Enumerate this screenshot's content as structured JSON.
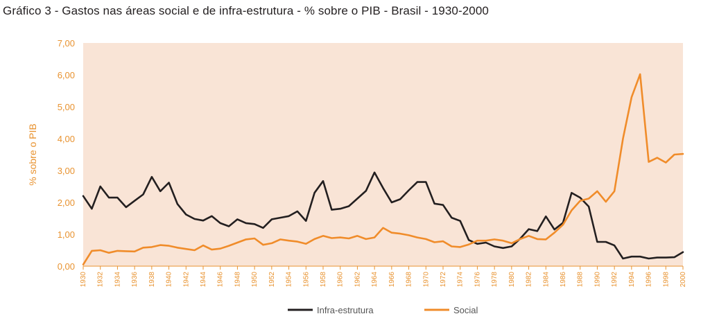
{
  "title": "Gráfico 3 - Gastos nas áreas social e de infra-estrutura - % sobre o PIB - Brasil - 1930-2000",
  "chart_data": {
    "type": "line",
    "title": "Gráfico 3 - Gastos nas áreas social e de infra-estrutura - % sobre o PIB - Brasil - 1930-2000",
    "xlabel": "",
    "ylabel": "% sobre o PIB",
    "ylim": [
      0,
      7
    ],
    "xlim": [
      1930,
      2000
    ],
    "y_ticks": [
      "0,00",
      "1,00",
      "2,00",
      "3,00",
      "4,00",
      "5,00",
      "6,00",
      "7,00"
    ],
    "x_ticks": [
      "1930",
      "1932",
      "1934",
      "1936",
      "1938",
      "1940",
      "1942",
      "1944",
      "1946",
      "1948",
      "1950",
      "1952",
      "1954",
      "1956",
      "1958",
      "1960",
      "1962",
      "1964",
      "1966",
      "1968",
      "1970",
      "1972",
      "1974",
      "1976",
      "1978",
      "1980",
      "1982",
      "1984",
      "1986",
      "1988",
      "1990",
      "1992",
      "1994",
      "1996",
      "1998",
      "2000"
    ],
    "grid": false,
    "legend": "bottom",
    "colors": {
      "plot_background": "#f9e4d6",
      "axis": "#e8922f"
    },
    "series": [
      {
        "name": "Infra-estrutura",
        "color": "#231f20",
        "x": [
          1930,
          1931,
          1932,
          1933,
          1934,
          1935,
          1936,
          1937,
          1938,
          1939,
          1940,
          1941,
          1942,
          1943,
          1944,
          1945,
          1946,
          1947,
          1948,
          1949,
          1950,
          1951,
          1952,
          1953,
          1954,
          1955,
          1956,
          1957,
          1958,
          1959,
          1960,
          1961,
          1962,
          1963,
          1964,
          1965,
          1966,
          1967,
          1968,
          1969,
          1970,
          1971,
          1972,
          1973,
          1974,
          1975,
          1976,
          1977,
          1978,
          1979,
          1980,
          1981,
          1982,
          1983,
          1984,
          1985,
          1986,
          1987,
          1988,
          1989,
          1990,
          1991,
          1992,
          1993,
          1994,
          1995,
          1996,
          1997,
          1998,
          1999,
          2000
        ],
        "values": [
          2.2,
          1.8,
          2.5,
          2.15,
          2.15,
          1.85,
          2.05,
          2.25,
          2.8,
          2.35,
          2.62,
          1.95,
          1.62,
          1.48,
          1.43,
          1.57,
          1.35,
          1.25,
          1.47,
          1.35,
          1.32,
          1.2,
          1.47,
          1.52,
          1.57,
          1.72,
          1.42,
          2.3,
          2.67,
          1.77,
          1.8,
          1.88,
          2.12,
          2.36,
          2.94,
          2.45,
          2.0,
          2.1,
          2.38,
          2.64,
          2.64,
          1.96,
          1.92,
          1.52,
          1.42,
          0.82,
          0.7,
          0.74,
          0.62,
          0.57,
          0.62,
          0.86,
          1.16,
          1.1,
          1.56,
          1.15,
          1.36,
          2.3,
          2.15,
          1.87,
          0.76,
          0.76,
          0.65,
          0.24,
          0.3,
          0.3,
          0.24,
          0.27,
          0.27,
          0.28,
          0.44
        ]
      },
      {
        "name": "Social",
        "color": "#f08c2a",
        "x": [
          1930,
          1931,
          1932,
          1933,
          1934,
          1935,
          1936,
          1937,
          1938,
          1939,
          1940,
          1941,
          1942,
          1943,
          1944,
          1945,
          1946,
          1947,
          1948,
          1949,
          1950,
          1951,
          1952,
          1953,
          1954,
          1955,
          1956,
          1957,
          1958,
          1959,
          1960,
          1961,
          1962,
          1963,
          1964,
          1965,
          1966,
          1967,
          1968,
          1969,
          1970,
          1971,
          1972,
          1973,
          1974,
          1975,
          1976,
          1977,
          1978,
          1979,
          1980,
          1981,
          1982,
          1983,
          1984,
          1985,
          1986,
          1987,
          1988,
          1989,
          1990,
          1991,
          1992,
          1993,
          1994,
          1995,
          1996,
          1997,
          1998,
          1999,
          2000
        ],
        "values": [
          0.05,
          0.48,
          0.5,
          0.42,
          0.48,
          0.47,
          0.46,
          0.58,
          0.6,
          0.66,
          0.64,
          0.58,
          0.54,
          0.5,
          0.65,
          0.52,
          0.55,
          0.64,
          0.74,
          0.84,
          0.87,
          0.67,
          0.72,
          0.84,
          0.8,
          0.77,
          0.7,
          0.85,
          0.95,
          0.88,
          0.9,
          0.87,
          0.95,
          0.85,
          0.9,
          1.2,
          1.05,
          1.02,
          0.97,
          0.9,
          0.85,
          0.75,
          0.78,
          0.62,
          0.6,
          0.68,
          0.8,
          0.8,
          0.84,
          0.8,
          0.72,
          0.85,
          0.95,
          0.85,
          0.84,
          1.05,
          1.3,
          1.75,
          2.05,
          2.12,
          2.35,
          2.02,
          2.35,
          4.0,
          5.3,
          6.02,
          3.27,
          3.4,
          3.25,
          3.5,
          3.52
        ]
      }
    ]
  }
}
